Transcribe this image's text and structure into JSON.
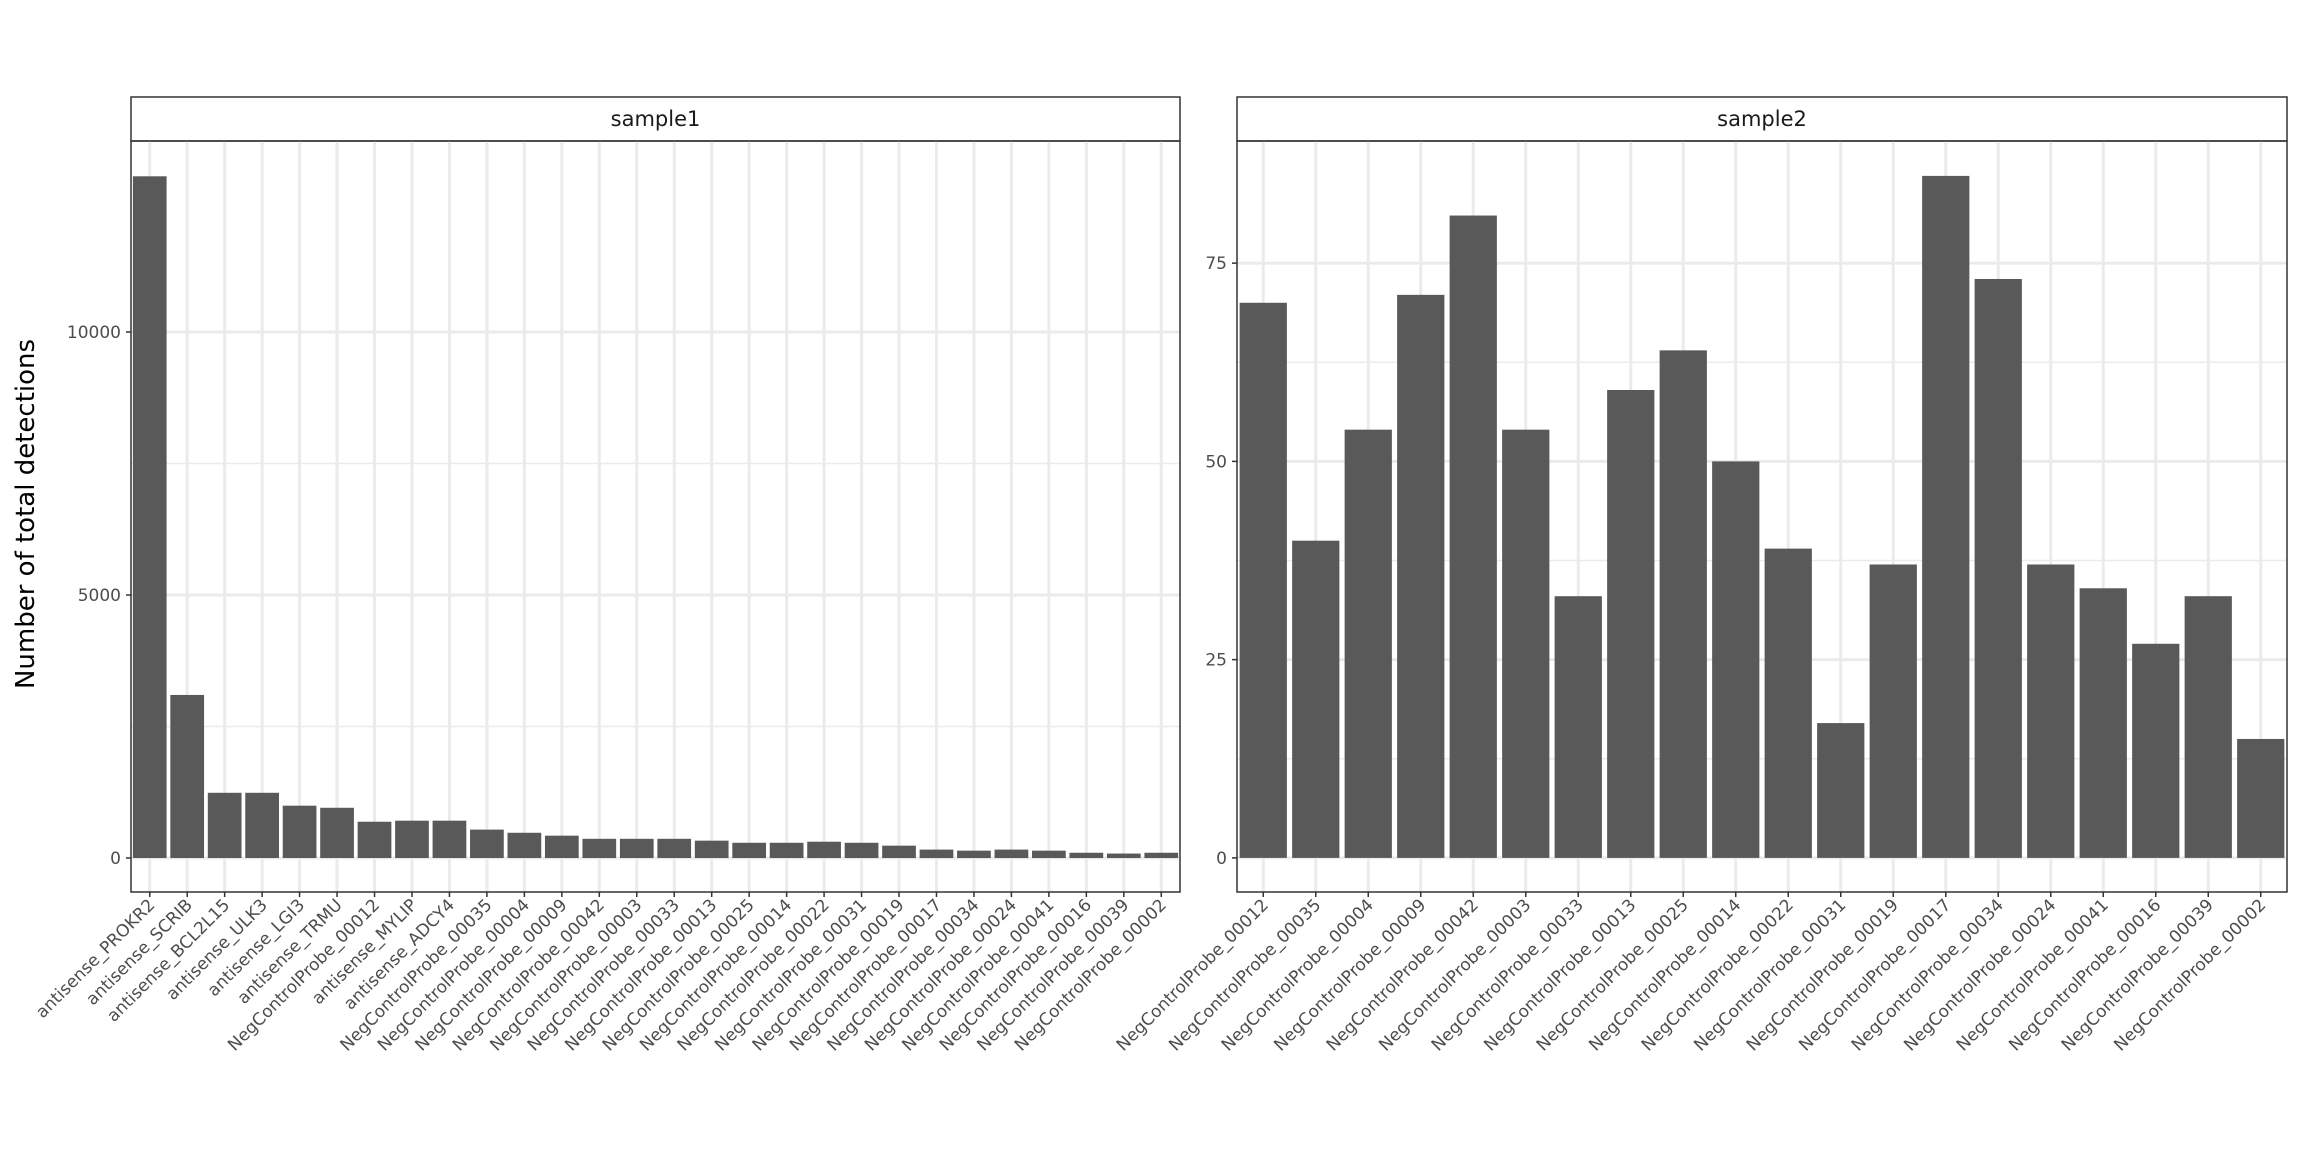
{
  "chart_data": {
    "type": "bar",
    "ylabel": "Number of total detections",
    "xlabel": "",
    "grid": true,
    "bar_color": "#595959",
    "grid_color": "#ebebeb",
    "panels": [
      {
        "title": "sample1",
        "ylim": [
          -646,
          13631
        ],
        "yticks": [
          0,
          5000,
          10000
        ],
        "categories": [
          "antisense_PROKR2",
          "antisense_SCRIB",
          "antisense_BCL2L15",
          "antisense_ULK3",
          "antisense_LGI3",
          "antisense_TRMU",
          "NegControlProbe_00012",
          "antisense_MYLIP",
          "antisense_ADCY4",
          "NegControlProbe_00035",
          "NegControlProbe_00004",
          "NegControlProbe_00009",
          "NegControlProbe_00042",
          "NegControlProbe_00003",
          "NegControlProbe_00033",
          "NegControlProbe_00013",
          "NegControlProbe_00025",
          "NegControlProbe_00014",
          "NegControlProbe_00022",
          "NegControlProbe_00031",
          "NegControlProbe_00019",
          "NegControlProbe_00017",
          "NegControlProbe_00034",
          "NegControlProbe_00024",
          "NegControlProbe_00041",
          "NegControlProbe_00016",
          "NegControlProbe_00039",
          "NegControlProbe_00002"
        ],
        "values": [
          12960,
          3100,
          1240,
          1240,
          995,
          955,
          690,
          710,
          710,
          540,
          480,
          425,
          365,
          365,
          365,
          330,
          290,
          290,
          310,
          290,
          235,
          160,
          140,
          160,
          140,
          100,
          85,
          100
        ]
      },
      {
        "title": "sample2",
        "ylim": [
          -4.3,
          90.4
        ],
        "yticks": [
          0,
          25,
          50,
          75
        ],
        "categories": [
          "NegControlProbe_00012",
          "NegControlProbe_00035",
          "NegControlProbe_00004",
          "NegControlProbe_00009",
          "NegControlProbe_00042",
          "NegControlProbe_00003",
          "NegControlProbe_00033",
          "NegControlProbe_00013",
          "NegControlProbe_00025",
          "NegControlProbe_00014",
          "NegControlProbe_00022",
          "NegControlProbe_00031",
          "NegControlProbe_00019",
          "NegControlProbe_00017",
          "NegControlProbe_00034",
          "NegControlProbe_00024",
          "NegControlProbe_00041",
          "NegControlProbe_00016",
          "NegControlProbe_00039",
          "NegControlProbe_00002"
        ],
        "values": [
          70,
          40,
          54,
          71,
          81,
          54,
          33,
          59,
          64,
          50,
          39,
          17,
          37,
          86,
          73,
          37,
          34,
          27,
          33,
          15
        ]
      }
    ]
  }
}
